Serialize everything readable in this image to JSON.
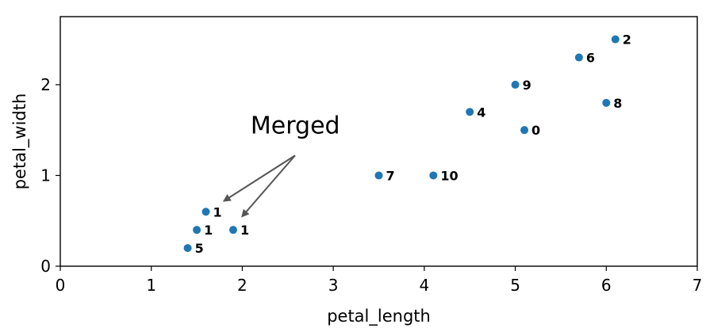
{
  "chart_data": {
    "type": "scatter",
    "xlabel": "petal_length",
    "ylabel": "petal_width",
    "xlim": [
      0,
      7
    ],
    "ylim": [
      0,
      2.75
    ],
    "xticks": [
      "0",
      "1",
      "2",
      "3",
      "4",
      "5",
      "6",
      "7"
    ],
    "yticks": [
      "0",
      "1",
      "2"
    ],
    "grid": false,
    "marker_color": "#1f77b4",
    "points": [
      {
        "x": 5.1,
        "y": 1.5,
        "label": "0"
      },
      {
        "x": 1.6,
        "y": 0.6,
        "label": "1"
      },
      {
        "x": 1.5,
        "y": 0.4,
        "label": "1"
      },
      {
        "x": 1.9,
        "y": 0.4,
        "label": "1"
      },
      {
        "x": 6.1,
        "y": 2.5,
        "label": "2"
      },
      {
        "x": 4.5,
        "y": 1.7,
        "label": "4"
      },
      {
        "x": 1.4,
        "y": 0.2,
        "label": "5"
      },
      {
        "x": 5.7,
        "y": 2.3,
        "label": "6"
      },
      {
        "x": 3.5,
        "y": 1.0,
        "label": "7"
      },
      {
        "x": 6.0,
        "y": 1.8,
        "label": "8"
      },
      {
        "x": 5.0,
        "y": 2.0,
        "label": "9"
      },
      {
        "x": 4.1,
        "y": 1.0,
        "label": "10"
      }
    ],
    "annotation": {
      "text": "Merged",
      "text_anchor": {
        "x": 2.6,
        "y": 1.55
      },
      "arrow_color": "#555555",
      "targets": [
        {
          "x": 1.8,
          "y": 0.72
        },
        {
          "x": 2.0,
          "y": 0.55
        }
      ]
    }
  }
}
